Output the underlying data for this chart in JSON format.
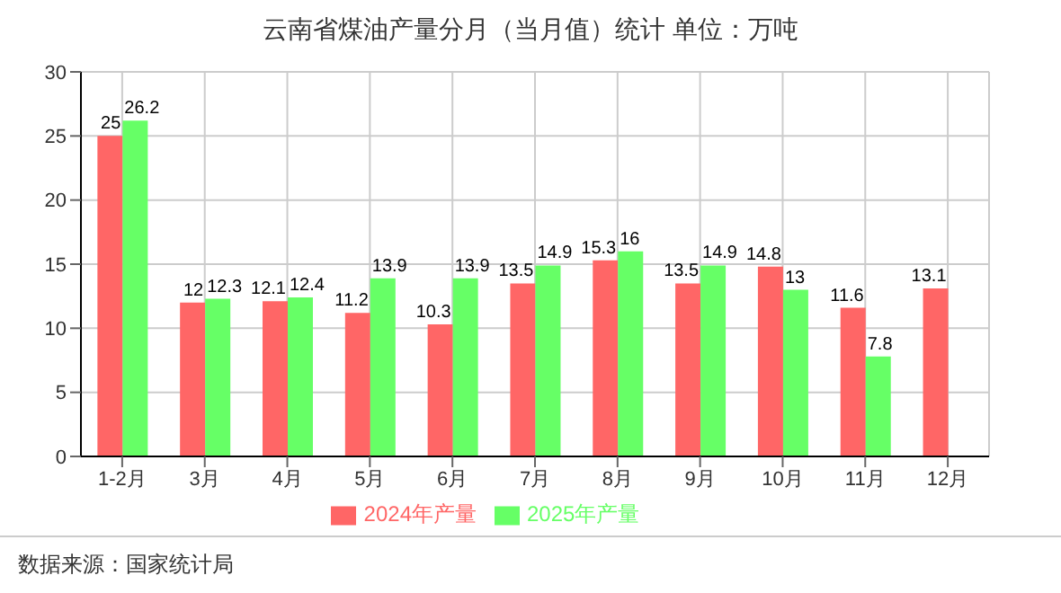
{
  "chart_data": {
    "type": "bar",
    "title": "云南省煤油产量分月（当月值）统计  单位：万吨",
    "categories": [
      "1-2月",
      "3月",
      "4月",
      "5月",
      "6月",
      "7月",
      "8月",
      "9月",
      "10月",
      "11月",
      "12月"
    ],
    "series": [
      {
        "name": "2024年产量",
        "color": "#ff6666",
        "values": [
          25,
          12,
          12.1,
          11.2,
          10.3,
          13.5,
          15.3,
          13.5,
          14.8,
          11.6,
          13.1
        ]
      },
      {
        "name": "2025年产量",
        "color": "#66ff66",
        "values": [
          26.2,
          12.3,
          12.4,
          13.9,
          13.9,
          14.9,
          16,
          14.9,
          13,
          7.8,
          null
        ]
      }
    ],
    "ylim": [
      0,
      30
    ],
    "yticks": [
      0,
      5,
      10,
      15,
      20,
      25,
      30
    ],
    "grid": true,
    "legend": "bottom",
    "data_labels": true,
    "annotations": [
      "数据来源：国家统计局"
    ]
  }
}
